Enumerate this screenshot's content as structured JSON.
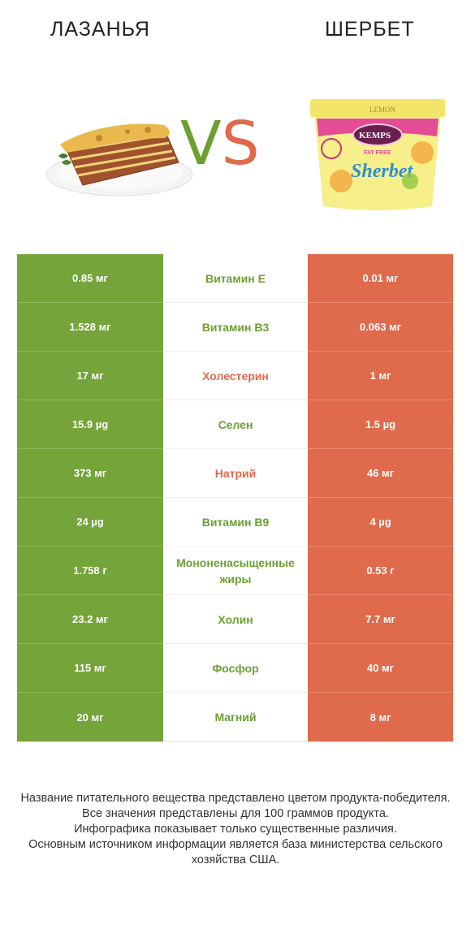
{
  "header": {
    "left_title": "Лазанья",
    "right_title": "Шербет",
    "vs_v": "V",
    "vs_s": "S"
  },
  "colors": {
    "winner_left": "#75a43a",
    "winner_right": "#e06a4c"
  },
  "rows": [
    {
      "left": "0.85 мг",
      "nutrient": "Витамин E",
      "right": "0.01 мг",
      "winner": "left"
    },
    {
      "left": "1.528 мг",
      "nutrient": "Витамин B3",
      "right": "0.063 мг",
      "winner": "left"
    },
    {
      "left": "17 мг",
      "nutrient": "Холестерин",
      "right": "1 мг",
      "winner": "right"
    },
    {
      "left": "15.9 µg",
      "nutrient": "Селен",
      "right": "1.5 µg",
      "winner": "left"
    },
    {
      "left": "373 мг",
      "nutrient": "Натрий",
      "right": "46 мг",
      "winner": "right"
    },
    {
      "left": "24 µg",
      "nutrient": "Витамин B9",
      "right": "4 µg",
      "winner": "left"
    },
    {
      "left": "1.758 г",
      "nutrient": "Мононенасыщенные жиры",
      "right": "0.53 г",
      "winner": "left"
    },
    {
      "left": "23.2 мг",
      "nutrient": "Холин",
      "right": "7.7 мг",
      "winner": "left"
    },
    {
      "left": "115 мг",
      "nutrient": "Фосфор",
      "right": "40 мг",
      "winner": "left"
    },
    {
      "left": "20 мг",
      "nutrient": "Магний",
      "right": "8 мг",
      "winner": "left"
    }
  ],
  "sherbet_label": {
    "brand": "KEMPS",
    "fat_free": "FAT FREE",
    "product": "Sherbet",
    "flavor": "LEMON"
  },
  "footer": {
    "line1": "Название питательного вещества представлено цветом продукта-победителя.",
    "line2": "Все значения представлены для 100 граммов продукта.",
    "line3": "Инфографика показывает только существенные различия.",
    "line4": "Основным источником информации является база министерства сельского хозяйства США."
  }
}
